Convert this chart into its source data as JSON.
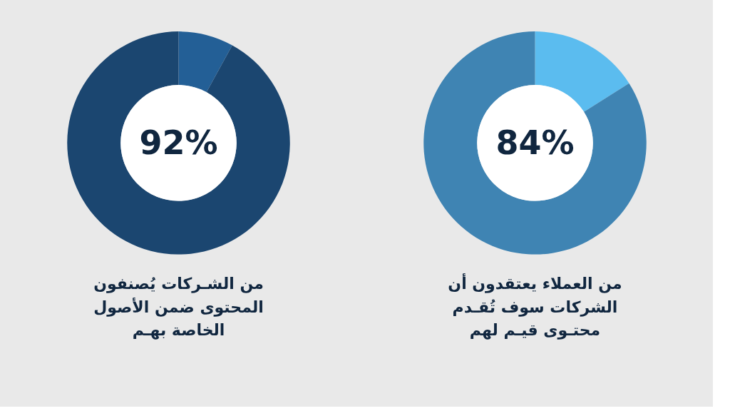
{
  "chart_data": [
    {
      "type": "donut",
      "categories": [
        null,
        null
      ],
      "values": [
        8,
        92
      ],
      "colors": [
        "#235f96",
        "#1b4670"
      ],
      "annotations": [
        "92%"
      ],
      "title": "من الشـركات يُصنفون\nالمحتوى ضمن الأصول\nالخاصة بهـم"
    },
    {
      "type": "donut",
      "categories": [
        null,
        null
      ],
      "values": [
        16,
        84
      ],
      "colors": [
        "#5bbcef",
        "#3f84b3"
      ],
      "annotations": [
        "84%"
      ],
      "title": "من العملاء يعتقدون أن\nالشركات سوف تُقـدم\nمحتـوى قيـم لهم"
    }
  ]
}
